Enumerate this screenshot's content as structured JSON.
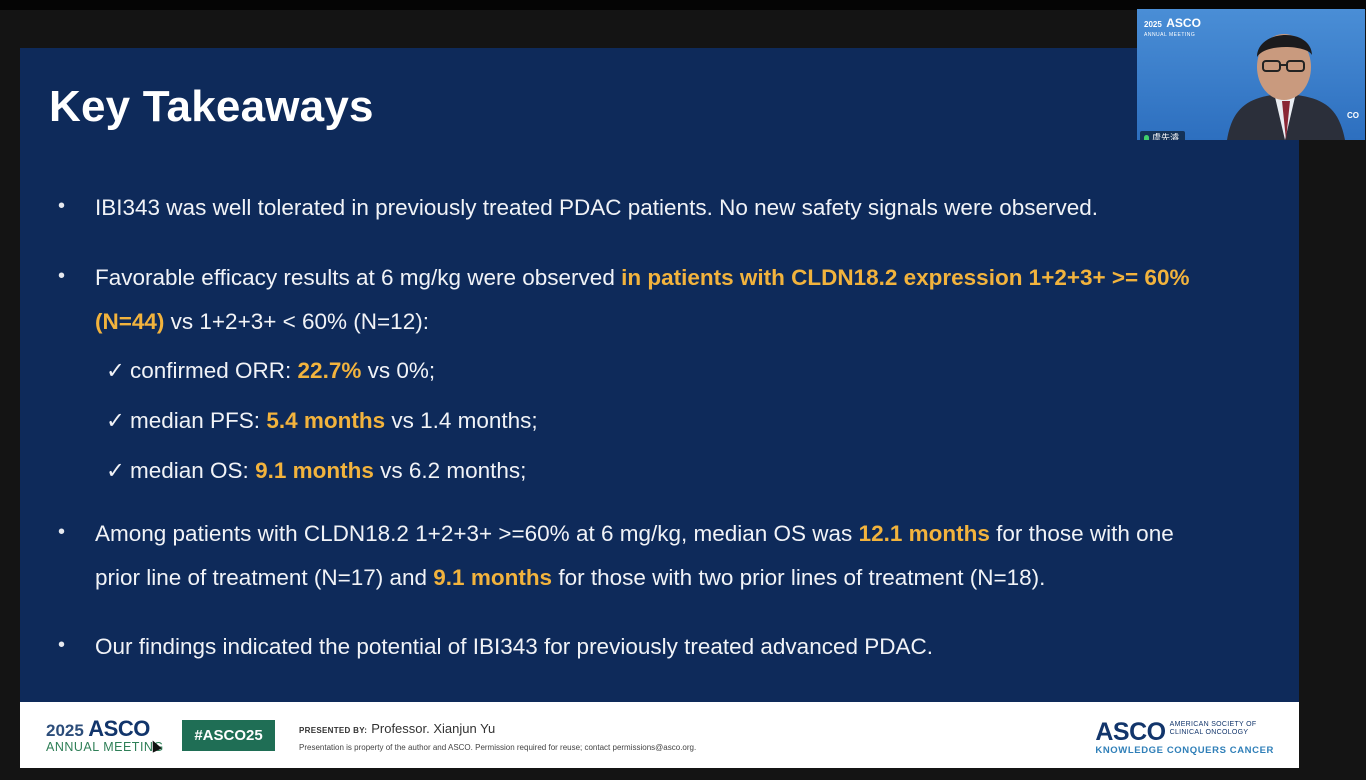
{
  "slide": {
    "title": "Key Takeaways",
    "bullets": [
      {
        "text": "IBI343 was well tolerated in previously treated PDAC patients. No new safety signals were observed."
      },
      {
        "line1_a": "Favorable efficacy results at 6 mg/kg were observed ",
        "line1_hl": "in patients with CLDN18.2 expression 1+2+3+ >= 60%",
        "line2_hl": "(N=44)",
        "line2_b": " vs 1+2+3+ < 60% (N=12):",
        "checks": [
          {
            "mark": "✓",
            "a": "confirmed ORR: ",
            "hl": "22.7%",
            "b": " vs 0%;"
          },
          {
            "mark": "✓",
            "a": "median PFS: ",
            "hl": "5.4 months",
            "b": " vs 1.4 months;"
          },
          {
            "mark": "✓",
            "a": "median OS: ",
            "hl": "9.1 months",
            "b": " vs 6.2 months;"
          }
        ]
      },
      {
        "line1_a": "Among patients with CLDN18.2 1+2+3+ >=60% at 6 mg/kg, median OS was ",
        "line1_hl": "12.1 months",
        "line1_b": " for those with one",
        "line2_a": "prior line of treatment (N=17) and ",
        "line2_hl": "9.1 months",
        "line2_b": " for those with two prior lines of treatment (N=18)."
      },
      {
        "text": "Our findings indicated the potential of IBI343 for previously treated advanced PDAC."
      }
    ],
    "bullet_char": "•",
    "highlight_color": "#f2b33d",
    "background_color": "#0e2a5a"
  },
  "footer": {
    "meeting_year": "2025",
    "meeting_org": "ASCO",
    "meeting_label": "ANNUAL MEETING",
    "hashtag": "#ASCO25",
    "presented_by_label": "PRESENTED BY:",
    "presenter": "Professor. Xianjun Yu",
    "property_notice": "Presentation is property of the author and ASCO. Permission required for reuse; contact permissions@asco.org.",
    "org_logo": "ASCO",
    "org_full_line1": "AMERICAN SOCIETY OF",
    "org_full_line2": "CLINICAL ONCOLOGY",
    "tagline": "KNOWLEDGE CONQUERS CANCER"
  },
  "video": {
    "logo_year": "2025",
    "logo_org": "ASCO",
    "logo_label": "ANNUAL MEETING",
    "corner_text": "CO",
    "participant_name": "虞先濬"
  }
}
